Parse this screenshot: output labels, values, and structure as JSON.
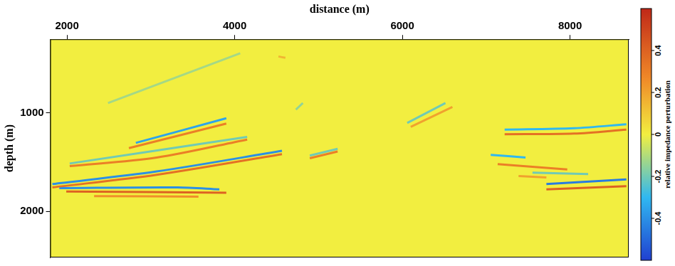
{
  "chart_data": {
    "type": "heatmap",
    "x_label": "distance (m)",
    "y_label": "depth (m)",
    "xlim": [
      1800,
      8700
    ],
    "xticks": [
      2000,
      4000,
      6000,
      8000
    ],
    "ylim": [
      250,
      2470
    ],
    "yticks": [
      1000,
      2000
    ],
    "colorbar": {
      "label": "relative impedance perturbation",
      "range": [
        -0.6,
        0.6
      ],
      "ticks": [
        -0.4,
        -0.2,
        0,
        0.2,
        0.4
      ]
    },
    "background_value": 0,
    "reflectors": [
      {
        "x": [
          2489,
          4066
        ],
        "y": [
          899,
          392
        ],
        "value": -0.12
      },
      {
        "x": [
          2821,
          3900
        ],
        "y": [
          1304,
          1054
        ],
        "value": -0.35
      },
      {
        "x": [
          2738,
          3900
        ],
        "y": [
          1358,
          1108
        ],
        "value": 0.3
      },
      {
        "x": [
          2032,
          3070,
          4149
        ],
        "y": [
          1541,
          1453,
          1270
        ],
        "value": 0.3
      },
      {
        "x": [
          2032,
          4149
        ],
        "y": [
          1514,
          1243
        ],
        "value": -0.2
      },
      {
        "x": [
          1825,
          3070,
          4564
        ],
        "y": [
          1723,
          1595,
          1385
        ],
        "value": -0.4
      },
      {
        "x": [
          1825,
          3070,
          4564
        ],
        "y": [
          1757,
          1629,
          1419
        ],
        "value": 0.35
      },
      {
        "x": [
          1908,
          3319,
          3817
        ],
        "y": [
          1764,
          1757,
          1777
        ],
        "value": -0.4
      },
      {
        "x": [
          1991,
          3900
        ],
        "y": [
          1798,
          1811
        ],
        "value": 0.4
      },
      {
        "x": [
          2323,
          3568
        ],
        "y": [
          1845,
          1852
        ],
        "value": 0.25
      },
      {
        "x": [
          4896,
          5228
        ],
        "y": [
          1460,
          1392
        ],
        "value": 0.3
      },
      {
        "x": [
          4896,
          5228
        ],
        "y": [
          1433,
          1365
        ],
        "value": -0.2
      },
      {
        "x": [
          4730,
          4813
        ],
        "y": [
          966,
          899
        ],
        "value": -0.15
      },
      {
        "x": [
          4522,
          4605
        ],
        "y": [
          425,
          439
        ],
        "value": 0.15
      },
      {
        "x": [
          6058,
          6514
        ],
        "y": [
          1101,
          899
        ],
        "value": -0.2
      },
      {
        "x": [
          6100,
          6597
        ],
        "y": [
          1142,
          939
        ],
        "value": 0.2
      },
      {
        "x": [
          7220,
          8049,
          8672
        ],
        "y": [
          1169,
          1155,
          1115
        ],
        "value": -0.3
      },
      {
        "x": [
          7220,
          8049,
          8672
        ],
        "y": [
          1216,
          1210,
          1169
        ],
        "value": 0.35
      },
      {
        "x": [
          7054,
          7469
        ],
        "y": [
          1426,
          1453
        ],
        "value": -0.3
      },
      {
        "x": [
          7137,
          7967
        ],
        "y": [
          1521,
          1575
        ],
        "value": 0.3
      },
      {
        "x": [
          7552,
          8216
        ],
        "y": [
          1608,
          1622
        ],
        "value": -0.2
      },
      {
        "x": [
          7718,
          8672
        ],
        "y": [
          1723,
          1676
        ],
        "value": -0.45
      },
      {
        "x": [
          7718,
          8672
        ],
        "y": [
          1777,
          1744
        ],
        "value": 0.4
      },
      {
        "x": [
          7386,
          7718
        ],
        "y": [
          1642,
          1656
        ],
        "value": 0.2
      }
    ]
  }
}
